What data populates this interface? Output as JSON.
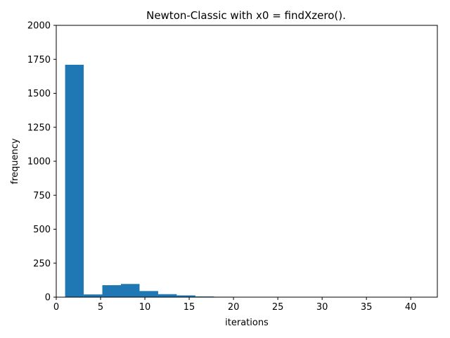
{
  "chart_data": {
    "type": "bar",
    "title": "Newton-Classic with x0 = findXzero().",
    "xlabel": "iterations",
    "ylabel": "frequency",
    "xlim": [
      0,
      43
    ],
    "ylim": [
      0,
      2000
    ],
    "xticks": [
      0,
      5,
      10,
      15,
      20,
      25,
      30,
      35,
      40
    ],
    "yticks": [
      0,
      250,
      500,
      750,
      1000,
      1250,
      1500,
      1750,
      2000
    ],
    "grid": false,
    "bar_color": "#1f77b4",
    "bins": [
      {
        "start": 1.0,
        "end": 3.1,
        "value": 1710
      },
      {
        "start": 3.1,
        "end": 5.2,
        "value": 20
      },
      {
        "start": 5.2,
        "end": 7.3,
        "value": 88
      },
      {
        "start": 7.3,
        "end": 9.4,
        "value": 97
      },
      {
        "start": 9.4,
        "end": 11.5,
        "value": 45
      },
      {
        "start": 11.5,
        "end": 13.6,
        "value": 22
      },
      {
        "start": 13.6,
        "end": 15.7,
        "value": 13
      },
      {
        "start": 15.7,
        "end": 17.8,
        "value": 5
      },
      {
        "start": 17.8,
        "end": 19.9,
        "value": 3
      },
      {
        "start": 19.9,
        "end": 22.0,
        "value": 2
      },
      {
        "start": 22.0,
        "end": 24.1,
        "value": 0.5
      },
      {
        "start": 24.1,
        "end": 26.2,
        "value": 0.5
      },
      {
        "start": 26.2,
        "end": 28.3,
        "value": 0.5
      },
      {
        "start": 28.3,
        "end": 30.4,
        "value": 0.5
      },
      {
        "start": 30.4,
        "end": 32.5,
        "value": 0.5
      },
      {
        "start": 32.5,
        "end": 34.6,
        "value": 0.5
      },
      {
        "start": 34.6,
        "end": 36.7,
        "value": 0.5
      },
      {
        "start": 36.7,
        "end": 38.8,
        "value": 0.5
      },
      {
        "start": 38.8,
        "end": 40.9,
        "value": 0.5
      }
    ]
  }
}
